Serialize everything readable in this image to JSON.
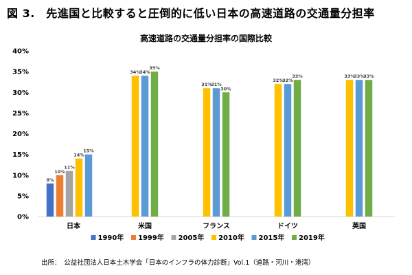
{
  "header": {
    "figure_title": "図 3.　先進国と比較すると圧倒的に低い日本の高速道路の交通量分担率"
  },
  "footer": {
    "source": "出所：　公益社団法人日本土木学会「日本のインフラの体力診断」Vol.1（道路・河川・港湾）"
  },
  "chart_data": {
    "type": "bar",
    "title": "高速道路の交通量分担率の国際比較",
    "xlabel": "",
    "ylabel": "",
    "ylim": [
      0,
      40
    ],
    "yticks": [
      0,
      5,
      10,
      15,
      20,
      25,
      30,
      35,
      40
    ],
    "ytick_suffix": "%",
    "grid": false,
    "legend_position": "bottom",
    "categories": [
      "日本",
      "米国",
      "フランス",
      "ドイツ",
      "英国"
    ],
    "series": [
      {
        "name": "1990年",
        "color": "#4472c4",
        "values": [
          8,
          null,
          null,
          null,
          null
        ]
      },
      {
        "name": "1999年",
        "color": "#ed7d31",
        "values": [
          10,
          null,
          null,
          null,
          null
        ]
      },
      {
        "name": "2005年",
        "color": "#a5a5a5",
        "values": [
          11,
          null,
          null,
          null,
          null
        ]
      },
      {
        "name": "2010年",
        "color": "#ffc000",
        "values": [
          14,
          34,
          31,
          32,
          33
        ]
      },
      {
        "name": "2015年",
        "color": "#5b9bd5",
        "values": [
          15,
          34,
          31,
          32,
          33
        ]
      },
      {
        "name": "2019年",
        "color": "#70ad47",
        "values": [
          null,
          35,
          30,
          33,
          33
        ]
      }
    ]
  }
}
